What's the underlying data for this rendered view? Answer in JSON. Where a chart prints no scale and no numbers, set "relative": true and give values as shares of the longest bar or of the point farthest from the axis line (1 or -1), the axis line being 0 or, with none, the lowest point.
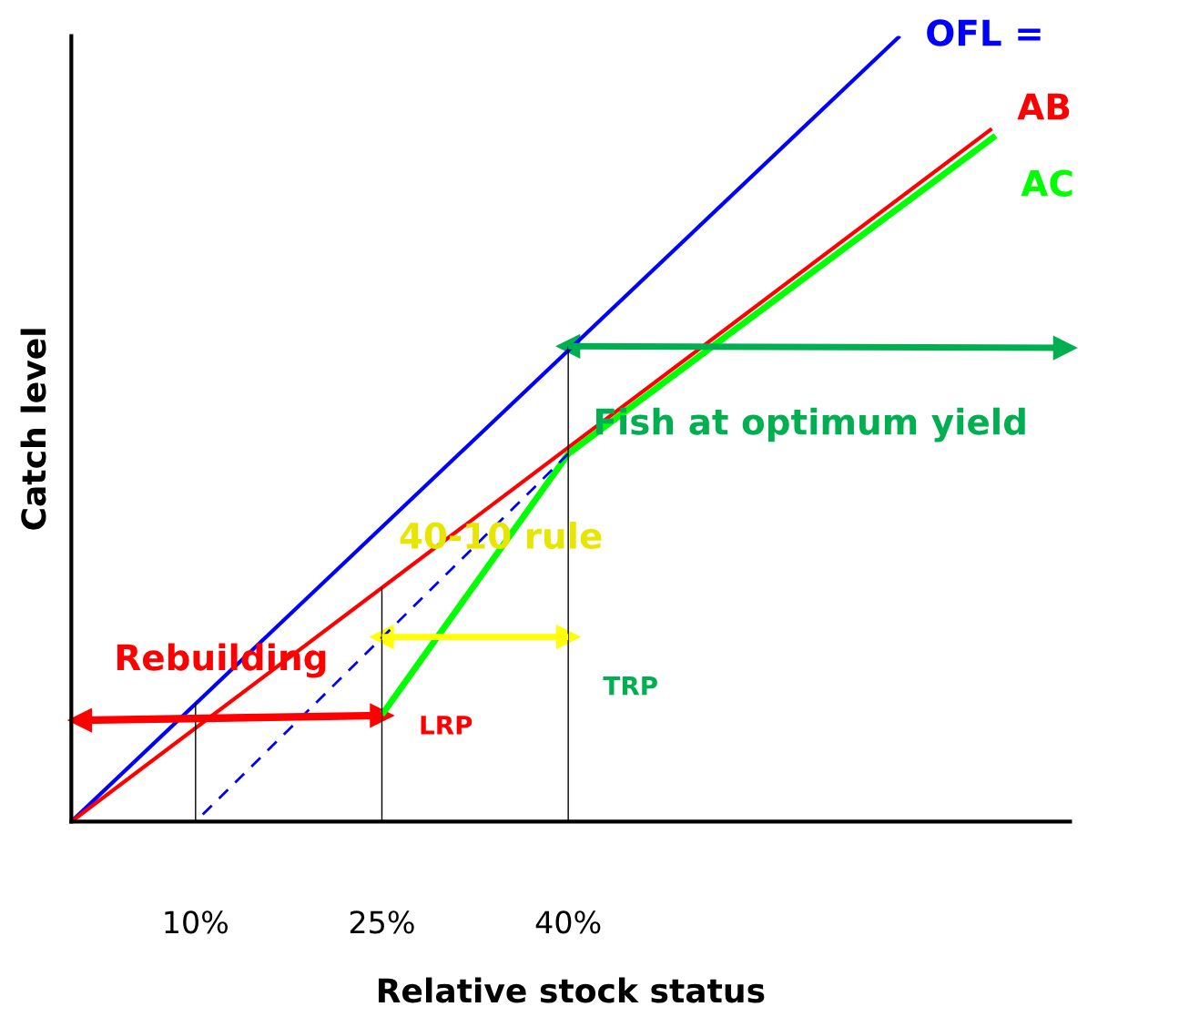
{
  "chart_data": {
    "type": "line",
    "relative": true,
    "xlabel": "Relative stock status",
    "ylabel": "Catch level",
    "xlim": [
      0,
      80.4
    ],
    "xticks": [
      {
        "value": 10,
        "label": "10%"
      },
      {
        "value": 25,
        "label": "25%"
      },
      {
        "value": 40,
        "label": "40%"
      }
    ],
    "tick_labels": "x",
    "grid": false,
    "legend": false,
    "series": [
      {
        "name": "OFL =",
        "color": "#0000ff",
        "x": [
          0,
          66.7
        ],
        "values": [
          0,
          1.0
        ]
      },
      {
        "name": "AB",
        "color": "#ff0000",
        "x": [
          0,
          74.1
        ],
        "values": [
          0,
          0.882
        ]
      },
      {
        "name": "AC",
        "color": "#00ff00",
        "x": [
          25,
          40,
          74.4
        ],
        "values": [
          0.136,
          0.468,
          0.873
        ]
      },
      {
        "color": "#0000ff",
        "x": [
          10,
          40
        ],
        "values": [
          0,
          0.468
        ],
        "line_style": "dashed"
      },
      {
        "color": "#000000",
        "x": [
          10,
          10
        ],
        "values": [
          0,
          0.151
        ]
      },
      {
        "color": "#000000",
        "x": [
          25,
          25
        ],
        "values": [
          0,
          0.298
        ]
      },
      {
        "color": "#000000",
        "x": [
          40,
          40
        ],
        "values": [
          0,
          0.605
        ]
      },
      {
        "color": "#00b050",
        "x": [
          40,
          80
        ],
        "values": [
          0.605,
          0.603
        ],
        "marker": "triangle"
      },
      {
        "color": "#ffff00",
        "x": [
          25,
          40
        ],
        "values": [
          0.235,
          0.235
        ],
        "marker": "triangle"
      },
      {
        "color": "#ff0000",
        "x": [
          0.7,
          25
        ],
        "values": [
          0.129,
          0.135
        ],
        "marker": "triangle"
      }
    ],
    "annotations": [
      "Rebuilding",
      "40-10 rule",
      "Fish at optimum yield",
      "LRP",
      "TRP"
    ]
  }
}
